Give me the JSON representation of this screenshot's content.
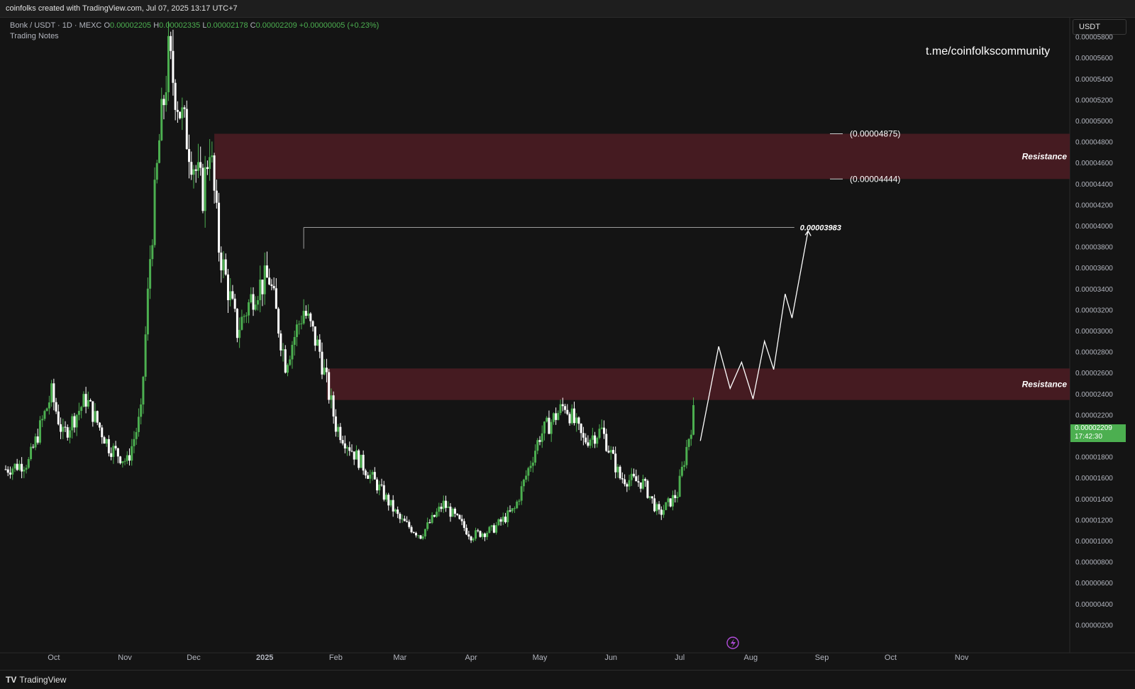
{
  "header": {
    "attribution": "coinfolks created with TradingView.com, Jul 07, 2025 13:17 UTC+7"
  },
  "legend": {
    "symbol": "Bonk / USDT · 1D · MEXC",
    "o_label": "O",
    "o_value": "0.00002205",
    "h_label": "H",
    "h_value": "0.00002335",
    "l_label": "L",
    "l_value": "0.00002178",
    "c_label": "C",
    "c_value": "0.00002209",
    "change": "+0.00000005 (+0.23%)",
    "notes": "Trading Notes"
  },
  "watermark": "t.me/coinfolkscommunity",
  "currency_button": "USDT",
  "last_price": {
    "value": "0.00002209",
    "countdown": "17:42:30"
  },
  "footer": {
    "brand": "TradingView",
    "logo": "TV"
  },
  "colors": {
    "up": "#4caf50",
    "down": "#ffffff",
    "zone": "#4a1c22",
    "grid_text": "#b2b5be",
    "background": "#141414"
  },
  "chart_data": {
    "type": "candlestick",
    "symbol": "Bonk / USDT",
    "interval": "1D",
    "exchange": "MEXC",
    "ylim": [
      1e-07,
      6e-05
    ],
    "y_ticks": [
      "0.00005800",
      "0.00005600",
      "0.00005400",
      "0.00005200",
      "0.00005000",
      "0.00004800",
      "0.00004600",
      "0.00004400",
      "0.00004200",
      "0.00004000",
      "0.00003800",
      "0.00003600",
      "0.00003400",
      "0.00003200",
      "0.00003000",
      "0.00002800",
      "0.00002600",
      "0.00002400",
      "0.00002200",
      "0.00002000",
      "0.00001800",
      "0.00001600",
      "0.00001400",
      "0.00001200",
      "0.00001000",
      "0.00000800",
      "0.00000600",
      "0.00000400",
      "0.00000200"
    ],
    "x_ticks": [
      "Oct",
      "Nov",
      "Dec",
      "2025",
      "Feb",
      "Mar",
      "Apr",
      "May",
      "Jun",
      "Jul",
      "Aug",
      "Sep",
      "Oct",
      "Nov"
    ],
    "x_range": [
      "2024-09-10",
      "2025-11-24"
    ],
    "price_path": [
      [
        "2024-09-10",
        1.68e-05
      ],
      [
        "2024-09-20",
        1.75e-05
      ],
      [
        "2024-09-30",
        2.4e-05
      ],
      [
        "2024-10-05",
        2e-05
      ],
      [
        "2024-10-15",
        2.35e-05
      ],
      [
        "2024-10-25",
        1.9e-05
      ],
      [
        "2024-11-02",
        1.75e-05
      ],
      [
        "2024-11-08",
        2.2e-05
      ],
      [
        "2024-11-12",
        3.7e-05
      ],
      [
        "2024-11-16",
        4.8e-05
      ],
      [
        "2024-11-20",
        5.6e-05
      ],
      [
        "2024-11-25",
        5.1e-05
      ],
      [
        "2024-12-01",
        4.6e-05
      ],
      [
        "2024-12-05",
        4.3e-05
      ],
      [
        "2024-12-08",
        4.8e-05
      ],
      [
        "2024-12-12",
        3.8e-05
      ],
      [
        "2024-12-20",
        3e-05
      ],
      [
        "2024-12-28",
        3.4e-05
      ],
      [
        "2025-01-03",
        3.5e-05
      ],
      [
        "2025-01-10",
        2.7e-05
      ],
      [
        "2025-01-18",
        3.2e-05
      ],
      [
        "2025-01-25",
        2.8e-05
      ],
      [
        "2025-02-01",
        2.1e-05
      ],
      [
        "2025-02-10",
        1.8e-05
      ],
      [
        "2025-02-20",
        1.5e-05
      ],
      [
        "2025-03-01",
        1.2e-05
      ],
      [
        "2025-03-10",
        1.05e-05
      ],
      [
        "2025-03-20",
        1.35e-05
      ],
      [
        "2025-04-01",
        1.05e-05
      ],
      [
        "2025-04-10",
        1.1e-05
      ],
      [
        "2025-04-20",
        1.3e-05
      ],
      [
        "2025-05-01",
        2e-05
      ],
      [
        "2025-05-12",
        2.3e-05
      ],
      [
        "2025-05-20",
        1.95e-05
      ],
      [
        "2025-05-28",
        2.05e-05
      ],
      [
        "2025-06-05",
        1.6e-05
      ],
      [
        "2025-06-15",
        1.55e-05
      ],
      [
        "2025-06-22",
        1.25e-05
      ],
      [
        "2025-06-30",
        1.45e-05
      ],
      [
        "2025-07-07",
        2.21e-05
      ]
    ],
    "zones": [
      {
        "label": "Resistance",
        "from": 4.444e-05,
        "to": 4.875e-05,
        "start": "2024-12-10"
      },
      {
        "label": "Resistance",
        "from": 2.34e-05,
        "to": 2.64e-05,
        "start": "2025-01-28"
      }
    ],
    "level_labels": [
      {
        "text": "(0.00004875)",
        "value": 4.875e-05
      },
      {
        "text": "(0.00004444)",
        "value": 4.444e-05
      }
    ],
    "target_line": {
      "text": "0.00003983",
      "value": 3.983e-05,
      "start": "2025-01-18",
      "end": "2025-08-20"
    },
    "projection": [
      [
        "2025-07-10",
        1.95e-05
      ],
      [
        "2025-07-18",
        2.85e-05
      ],
      [
        "2025-07-23",
        2.45e-05
      ],
      [
        "2025-07-28",
        2.7e-05
      ],
      [
        "2025-08-02",
        2.35e-05
      ],
      [
        "2025-08-07",
        2.9e-05
      ],
      [
        "2025-08-11",
        2.63e-05
      ],
      [
        "2025-08-16",
        3.35e-05
      ],
      [
        "2025-08-19",
        3.12e-05
      ],
      [
        "2025-08-26",
        3.95e-05
      ]
    ]
  }
}
